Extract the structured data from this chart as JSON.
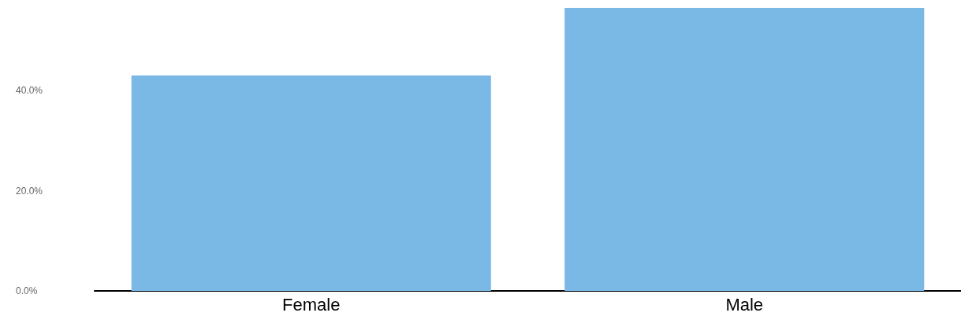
{
  "chart_data": {
    "type": "bar",
    "categories": [
      "Female",
      "Male"
    ],
    "values": [
      43.0,
      56.5
    ],
    "color": "#7ab8e5",
    "ylim": [
      0,
      56.5
    ],
    "yticks": [
      {
        "value": 0,
        "label": "0.0%"
      },
      {
        "value": 20,
        "label": "20.0%"
      },
      {
        "value": 40,
        "label": "40.0%"
      }
    ],
    "grid": false
  }
}
